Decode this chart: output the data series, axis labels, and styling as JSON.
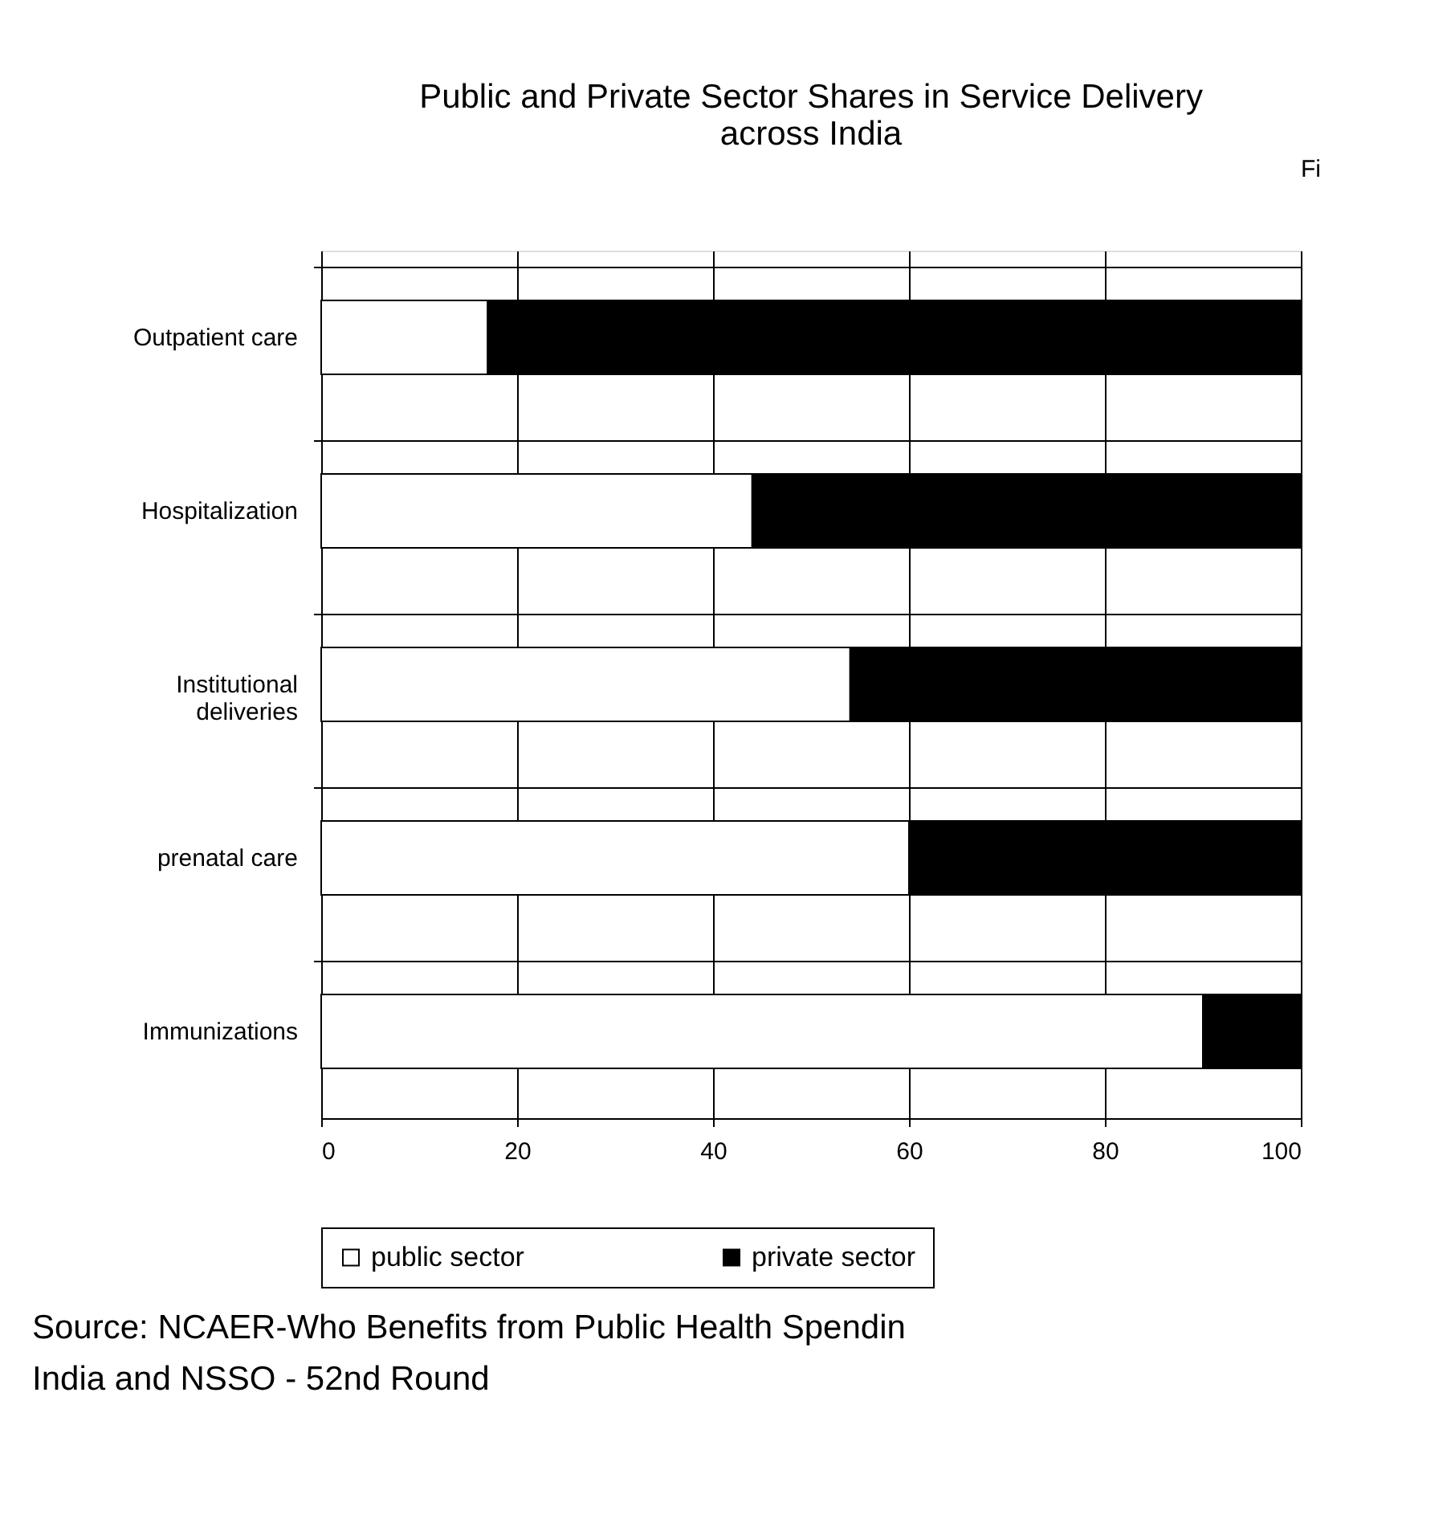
{
  "chart_data": {
    "type": "bar",
    "orientation": "horizontal",
    "stacked": true,
    "title": "Public and Private Sector Shares in Service Delivery across India",
    "categories": [
      "Outpatient care",
      "Hospitalization",
      "Institutional deliveries",
      "prenatal care",
      "Immunizations"
    ],
    "series": [
      {
        "name": "public sector",
        "color": "#ffffff",
        "values": [
          17,
          44,
          54,
          60,
          90
        ]
      },
      {
        "name": "private sector",
        "color": "#000000",
        "values": [
          83,
          56,
          46,
          40,
          10
        ]
      }
    ],
    "xlim": [
      0,
      100
    ],
    "xticks": [
      0,
      20,
      40,
      60,
      80,
      100
    ],
    "grid": true,
    "legend": "bottom",
    "annotations": [
      "Fi",
      "Source: NCAER-Who Benefits from Public Health Spendin India and NSSO - 52nd Round"
    ]
  }
}
